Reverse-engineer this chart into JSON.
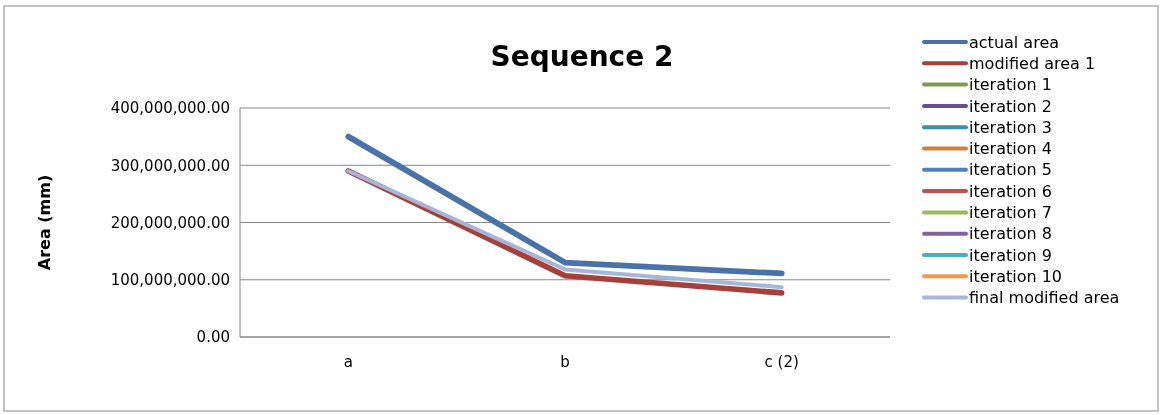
{
  "chart_data": {
    "type": "line",
    "title": "Sequence 2",
    "ylabel": "Area (mm)",
    "categories": [
      "a",
      "b",
      "c (2)"
    ],
    "ylim": [
      0,
      400000000
    ],
    "yticks": [
      {
        "value": 0,
        "label": "0.00"
      },
      {
        "value": 100000000,
        "label": "100,000,000.00"
      },
      {
        "value": 200000000,
        "label": "200,000,000.00"
      },
      {
        "value": 300000000,
        "label": "300,000,000.00"
      },
      {
        "value": 400000000,
        "label": "400,000,000.00"
      }
    ],
    "grid": "y",
    "legend": "right",
    "marker": "none",
    "series": [
      {
        "name": "actual area",
        "color": "#4a72a8",
        "values": [
          350000000,
          130000000,
          111000000
        ]
      },
      {
        "name": "modified area 1",
        "color": "#a6403c",
        "values": [
          290000000,
          107000000,
          77000000
        ]
      },
      {
        "name": "iteration 1",
        "color": "#7f9c48",
        "values": [
          null,
          null,
          null
        ]
      },
      {
        "name": "iteration 2",
        "color": "#6a5088",
        "values": [
          null,
          null,
          null
        ]
      },
      {
        "name": "iteration 3",
        "color": "#3a8fa0",
        "values": [
          null,
          null,
          null
        ]
      },
      {
        "name": "iteration 4",
        "color": "#d47f37",
        "values": [
          null,
          null,
          null
        ]
      },
      {
        "name": "iteration 5",
        "color": "#4f81c0",
        "values": [
          null,
          null,
          null
        ]
      },
      {
        "name": "iteration 6",
        "color": "#c0504d",
        "values": [
          null,
          null,
          null
        ]
      },
      {
        "name": "iteration 7",
        "color": "#9bbb59",
        "values": [
          null,
          null,
          null
        ]
      },
      {
        "name": "iteration 8",
        "color": "#8064a2",
        "values": [
          null,
          null,
          null
        ]
      },
      {
        "name": "iteration 9",
        "color": "#4bacc6",
        "values": [
          null,
          null,
          null
        ]
      },
      {
        "name": "iteration 10",
        "color": "#f79646",
        "values": [
          null,
          null,
          null
        ]
      },
      {
        "name": "final modified area",
        "color": "#a5b6d6",
        "values": [
          290000000,
          118000000,
          87000000
        ]
      }
    ]
  }
}
